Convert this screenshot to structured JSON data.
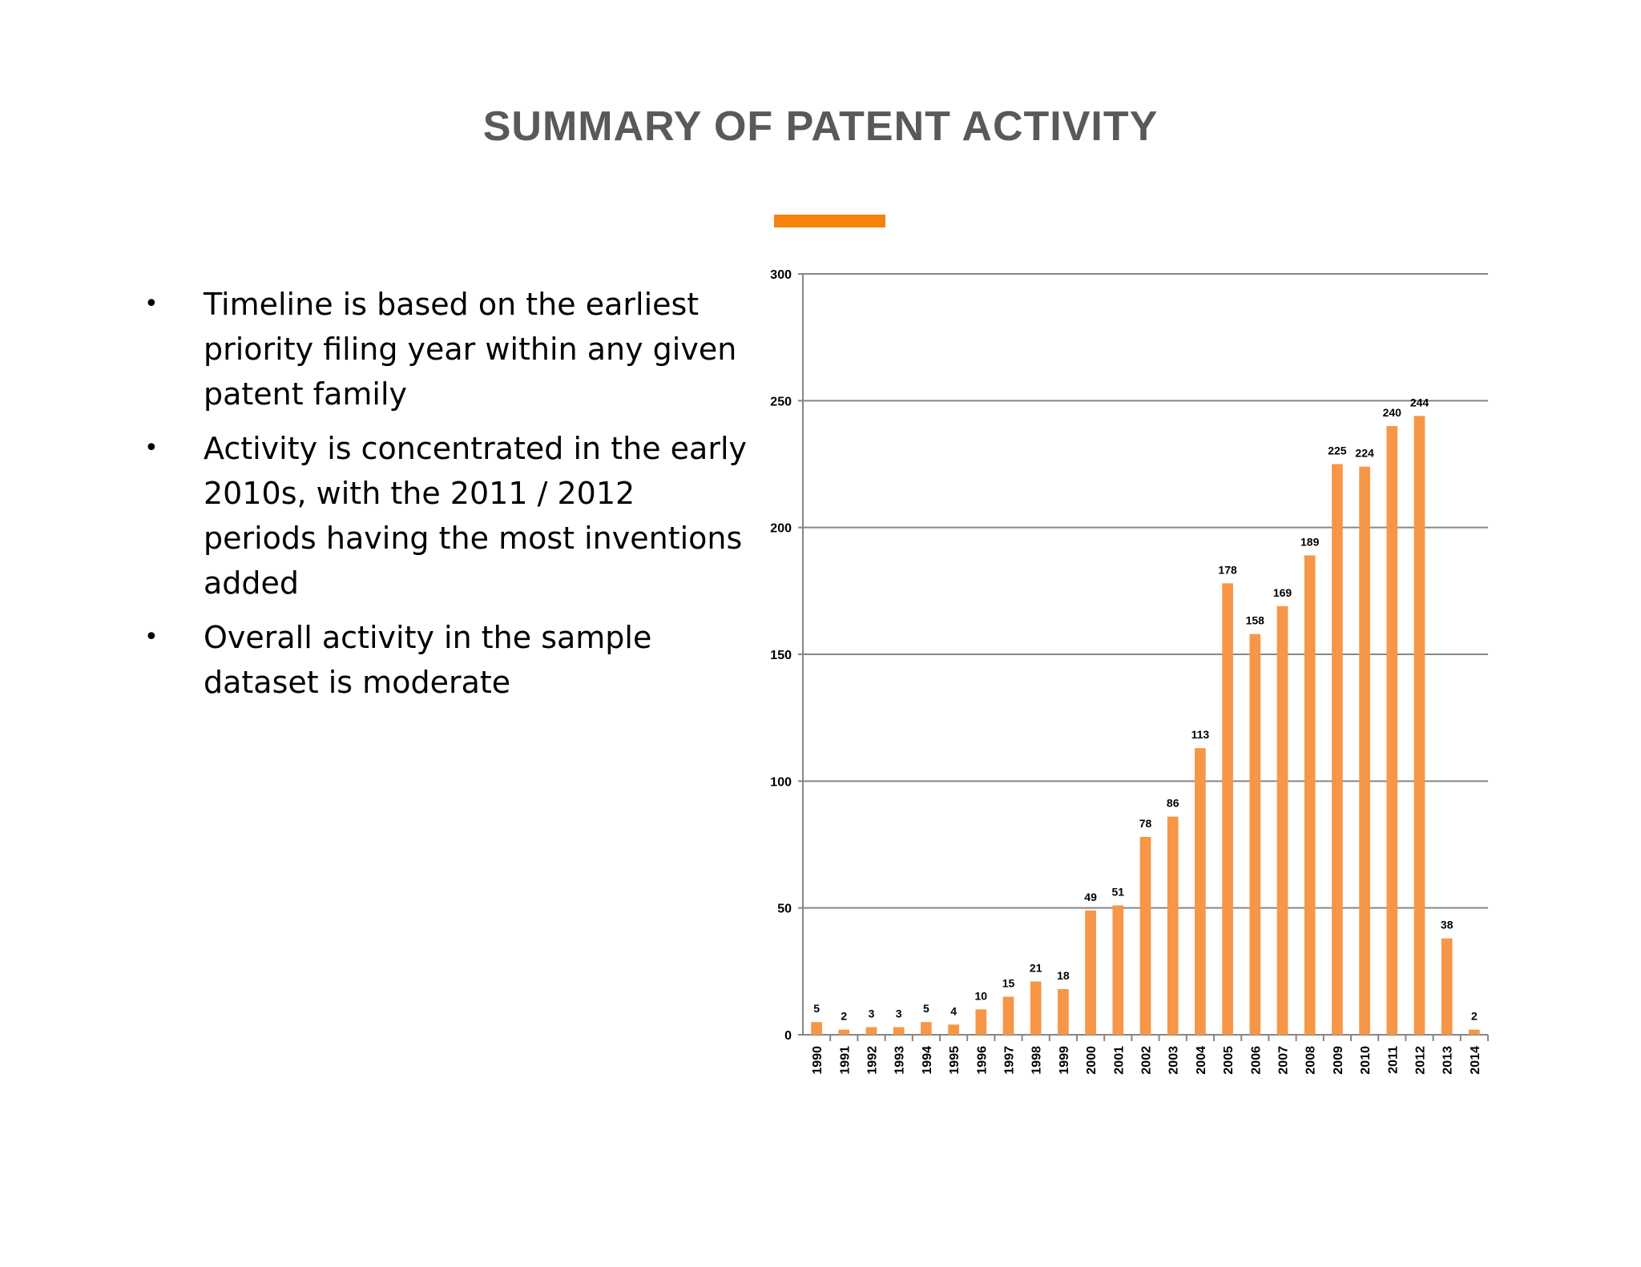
{
  "slide": {
    "title": "SUMMARY OF PATENT ACTIVITY",
    "accent_color": "#F5820D"
  },
  "bullets": [
    "Timeline is based on the earliest priority filing year within any given patent family",
    "Activity is concentrated in the early 2010s, with the 2011 / 2012 periods having the most inventions added",
    "Overall activity in the sample dataset is moderate"
  ],
  "bullet_marker": "•",
  "chart_data": {
    "type": "bar",
    "title": "",
    "xlabel": "",
    "ylabel": "",
    "categories": [
      "1990",
      "1991",
      "1992",
      "1993",
      "1994",
      "1995",
      "1996",
      "1997",
      "1998",
      "1999",
      "2000",
      "2001",
      "2002",
      "2003",
      "2004",
      "2005",
      "2006",
      "2007",
      "2008",
      "2009",
      "2010",
      "2011",
      "2012",
      "2013",
      "2014"
    ],
    "values": [
      5,
      2,
      3,
      3,
      5,
      4,
      10,
      15,
      21,
      18,
      49,
      51,
      78,
      86,
      113,
      178,
      158,
      169,
      189,
      225,
      224,
      240,
      244,
      38,
      2
    ],
    "ylim": [
      0,
      300
    ],
    "yticks": [
      0,
      50,
      100,
      150,
      200,
      250,
      300
    ],
    "grid": true,
    "data_labels": true,
    "legend": "none",
    "bar_color": "#F79646",
    "grid_color": "#868686"
  }
}
